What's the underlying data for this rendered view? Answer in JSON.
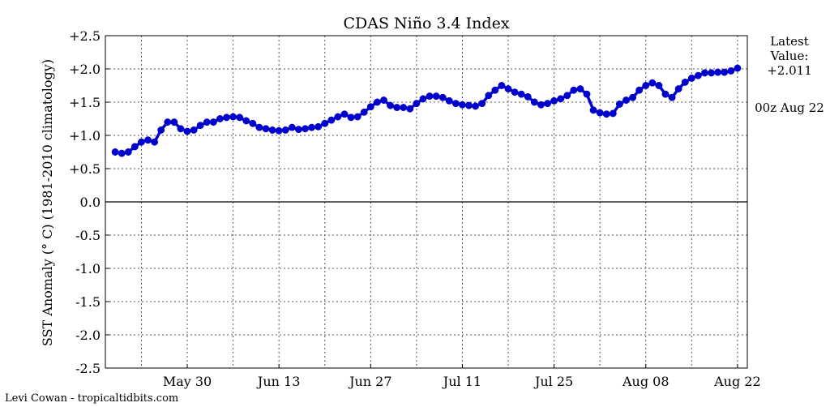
{
  "chart_data": {
    "type": "line",
    "title": "CDAS Niño 3.4 Index",
    "ylabel": "SST Anomaly ($^\\circ C$) (1981-2010 climatology)",
    "ylabel_display": "SST Anomaly (° C) (1981-2010 climatology)",
    "ylim": [
      -2.5,
      2.5
    ],
    "xlim": [
      -12.5,
      85.5
    ],
    "y_ticks": [
      2.5,
      2.0,
      1.5,
      1.0,
      0.5,
      0.0,
      -0.5,
      -1.0,
      -1.5,
      -2.0,
      -2.5
    ],
    "y_tick_labels": [
      "+2.5",
      "+2.0",
      "+1.5",
      "+1.0",
      "+0.5",
      "0.0",
      "-0.5",
      "-1.0",
      "-1.5",
      "-2.0",
      "-2.5"
    ],
    "x_ticks": [
      0,
      14,
      28,
      42,
      56,
      70,
      84
    ],
    "x_tick_labels": [
      "May 30",
      "Jun 13",
      "Jun 27",
      "Jul 11",
      "Jul 25",
      "Aug 08",
      "Aug 22"
    ],
    "x_grid_extra": [
      -7,
      7,
      21,
      35,
      49,
      63,
      77
    ],
    "grid": true,
    "zero_line": true,
    "series": [
      {
        "color": "#0000cc",
        "x": [
          -11,
          -10,
          -9,
          -8,
          -7,
          -6,
          -5,
          -4,
          -3,
          -2,
          -1,
          0,
          1,
          2,
          3,
          4,
          5,
          6,
          7,
          8,
          9,
          10,
          11,
          12,
          13,
          14,
          15,
          16,
          17,
          18,
          19,
          20,
          21,
          22,
          23,
          24,
          25,
          26,
          27,
          28,
          29,
          30,
          31,
          32,
          33,
          34,
          35,
          36,
          37,
          38,
          39,
          40,
          41,
          42,
          43,
          44,
          45,
          46,
          47,
          48,
          49,
          50,
          51,
          52,
          53,
          54,
          55,
          56,
          57,
          58,
          59,
          60,
          61,
          62,
          63,
          64,
          65,
          66,
          67,
          68,
          69,
          70,
          71,
          72,
          73,
          74,
          75,
          76,
          77,
          78,
          79,
          80,
          81,
          82,
          83,
          84
        ],
        "values": [
          0.75,
          0.73,
          0.75,
          0.83,
          0.9,
          0.93,
          0.9,
          1.08,
          1.2,
          1.2,
          1.1,
          1.06,
          1.08,
          1.15,
          1.2,
          1.2,
          1.25,
          1.27,
          1.28,
          1.27,
          1.22,
          1.18,
          1.12,
          1.1,
          1.08,
          1.07,
          1.08,
          1.12,
          1.09,
          1.1,
          1.12,
          1.13,
          1.18,
          1.23,
          1.28,
          1.32,
          1.27,
          1.28,
          1.35,
          1.43,
          1.5,
          1.53,
          1.45,
          1.42,
          1.42,
          1.4,
          1.48,
          1.55,
          1.59,
          1.59,
          1.57,
          1.52,
          1.48,
          1.46,
          1.45,
          1.44,
          1.48,
          1.6,
          1.68,
          1.75,
          1.7,
          1.65,
          1.62,
          1.58,
          1.5,
          1.46,
          1.48,
          1.52,
          1.55,
          1.6,
          1.68,
          1.7,
          1.62,
          1.38,
          1.34,
          1.32,
          1.33,
          1.47,
          1.53,
          1.57,
          1.68,
          1.75,
          1.79,
          1.75,
          1.62,
          1.57,
          1.7,
          1.8,
          1.86,
          1.9,
          1.94,
          1.94,
          1.95,
          1.95,
          1.97,
          2.011
        ]
      }
    ],
    "annotations": {
      "latest_line1": "Latest",
      "latest_line2": "Value:",
      "latest_value": "+2.011",
      "latest_time": "00z Aug 22"
    },
    "credit": "Levi Cowan - tropicaltidbits.com"
  }
}
